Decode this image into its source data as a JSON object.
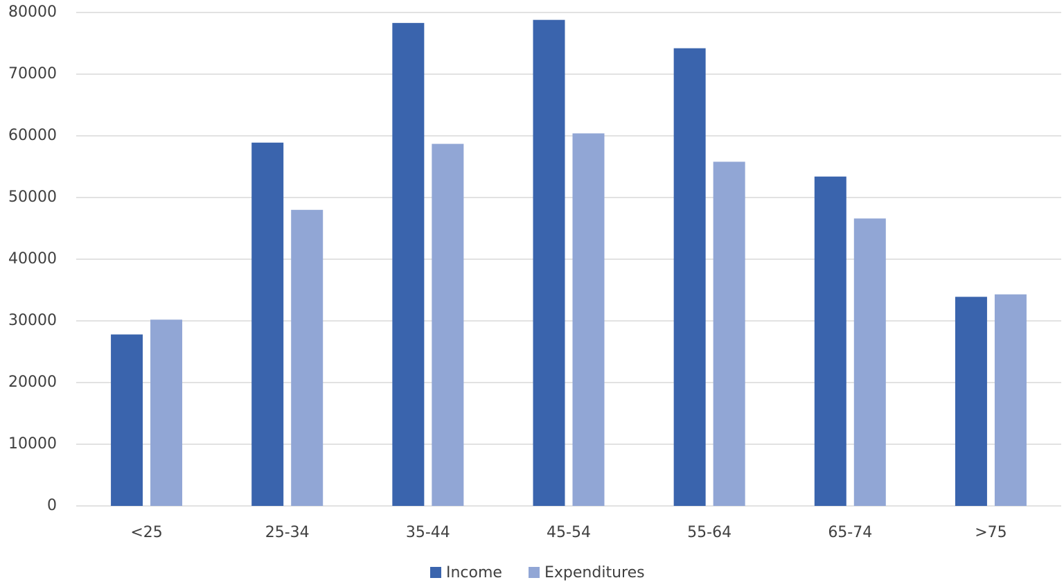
{
  "chart_data": {
    "type": "bar",
    "categories": [
      "<25",
      "25-34",
      "35-44",
      "45-54",
      "55-64",
      "65-74",
      ">75"
    ],
    "series": [
      {
        "name": "Income",
        "color": "#3a64ad",
        "values": [
          27800,
          58900,
          78300,
          78800,
          74200,
          53400,
          33900
        ]
      },
      {
        "name": "Expenditures",
        "color": "#91a6d5",
        "values": [
          30200,
          48000,
          58700,
          60400,
          55800,
          46600,
          34300
        ]
      }
    ],
    "ylim": [
      0,
      80000
    ],
    "yticks": [
      0,
      10000,
      20000,
      30000,
      40000,
      50000,
      60000,
      70000,
      80000
    ],
    "grid": true,
    "legend": "bottom"
  }
}
